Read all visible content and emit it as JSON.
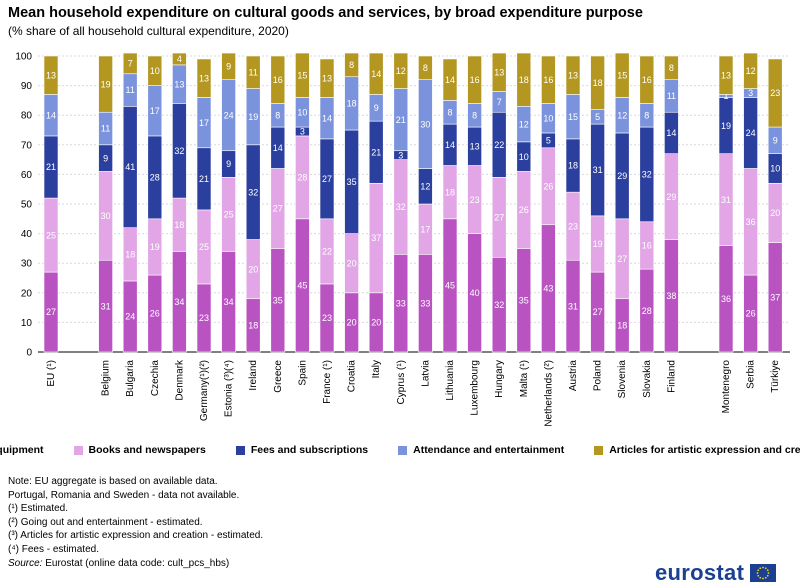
{
  "title": "Mean household expenditure on cultural goods and services, by broad expenditure purpose",
  "subtitle": "(% share of all household cultural expenditure, 2020)",
  "chart_data": {
    "type": "bar",
    "stacked": true,
    "ylim": [
      0,
      100
    ],
    "yticks": [
      0,
      10,
      20,
      30,
      40,
      50,
      60,
      70,
      80,
      90,
      100
    ],
    "grid": true,
    "legend_position": "bottom",
    "groups": [
      [
        0
      ],
      [
        1,
        24
      ],
      [
        25,
        27
      ]
    ],
    "categories": [
      "EU (¹)",
      "Belgium",
      "Bulgaria",
      "Czechia",
      "Denmark",
      "Germany(¹)(²)",
      "Estonia (³)(⁴)",
      "Ireland",
      "Greece",
      "Spain",
      "France (¹)",
      "Croatia",
      "Italy",
      "Cyprus (¹)",
      "Latvia",
      "Lithuania",
      "Luxembourg",
      "Hungary",
      "Malta (¹)",
      "Netherlands (²)",
      "Austria",
      "Poland",
      "Slovenia",
      "Slovakia",
      "Finland",
      "Montenegro",
      "Serbia",
      "Türkiye"
    ],
    "series": [
      {
        "name": "Equipment",
        "color": "#b953c2",
        "values": [
          27,
          31,
          24,
          26,
          34,
          23,
          34,
          18,
          35,
          45,
          23,
          20,
          20,
          33,
          33,
          45,
          40,
          32,
          35,
          43,
          31,
          27,
          18,
          28,
          38,
          36,
          26,
          37
        ]
      },
      {
        "name": "Books and newspapers",
        "color": "#e2a6e7",
        "values": [
          25,
          30,
          18,
          19,
          18,
          25,
          25,
          20,
          27,
          28,
          22,
          20,
          37,
          32,
          17,
          18,
          23,
          27,
          26,
          26,
          23,
          19,
          27,
          16,
          29,
          31,
          36,
          20
        ]
      },
      {
        "name": "Fees and subscriptions",
        "color": "#2a3f9e",
        "values": [
          21,
          9,
          41,
          28,
          32,
          21,
          9,
          32,
          14,
          3,
          27,
          35,
          21,
          3,
          12,
          14,
          13,
          22,
          10,
          5,
          18,
          31,
          29,
          32,
          14,
          19,
          24,
          10
        ]
      },
      {
        "name": "Attendance and entertainment",
        "color": "#7b93dd",
        "values": [
          14,
          11,
          11,
          17,
          13,
          17,
          24,
          19,
          8,
          10,
          14,
          18,
          9,
          21,
          30,
          8,
          8,
          7,
          12,
          10,
          15,
          5,
          12,
          8,
          11,
          1,
          3,
          9
        ]
      },
      {
        "name": "Articles for artistic expression and creation",
        "color": "#b39720",
        "values": [
          13,
          19,
          7,
          10,
          4,
          13,
          9,
          11,
          16,
          15,
          13,
          8,
          14,
          12,
          8,
          14,
          16,
          13,
          18,
          16,
          13,
          18,
          15,
          16,
          8,
          13,
          12,
          23
        ]
      }
    ]
  },
  "notes": {
    "lines": [
      "Note: EU aggregate is based on available data.",
      "Portugal, Romania and Sweden - data not available.",
      "(¹) Estimated.",
      "(²) Going out and entertainment  - estimated.",
      "(³) Articles for artistic expression and creation - estimated.",
      "(⁴) Fees - estimated."
    ],
    "source_label": "Source:",
    "source_text": " Eurostat (online data code: cult_pcs_hbs)"
  },
  "logo_text": "eurostat"
}
